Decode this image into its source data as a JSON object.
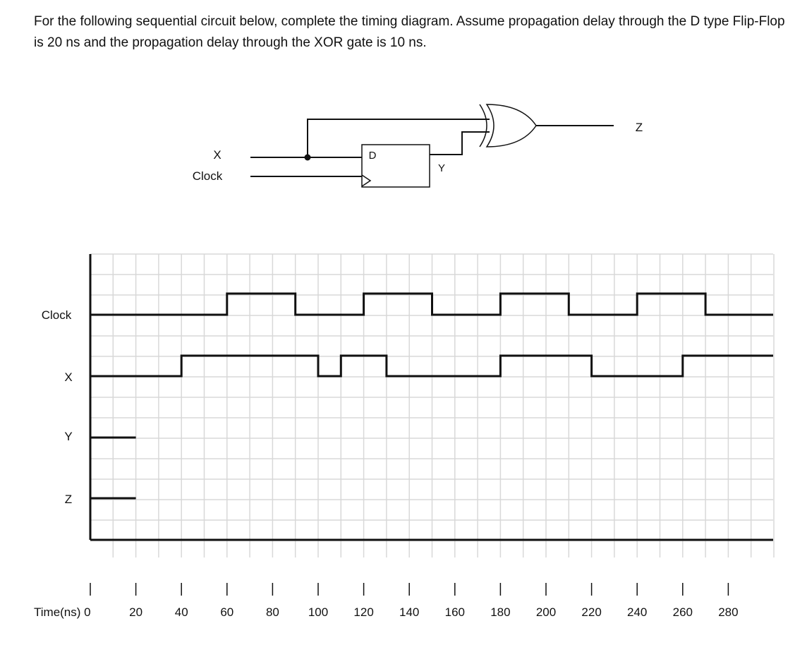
{
  "question": "For the following sequential circuit below, complete the timing diagram. Assume propagation delay through the D type Flip-Flop is 20 ns and the propagation delay through the XOR gate is 10 ns.",
  "circuit": {
    "input_x": "X",
    "input_clock": "Clock",
    "ff_d": "D",
    "ff_output": "Y",
    "output": "Z"
  },
  "timing": {
    "axis_label": "Time(ns) 0",
    "ticks": [
      20,
      40,
      60,
      80,
      100,
      120,
      140,
      160,
      180,
      200,
      220,
      240,
      260,
      280
    ],
    "signals": [
      {
        "name": "Clock",
        "transitions": [
          [
            0,
            0
          ],
          [
            60,
            1
          ],
          [
            90,
            0
          ],
          [
            120,
            1
          ],
          [
            150,
            0
          ],
          [
            180,
            1
          ],
          [
            210,
            0
          ],
          [
            240,
            1
          ],
          [
            270,
            0
          ]
        ]
      },
      {
        "name": "X",
        "transitions": [
          [
            0,
            0
          ],
          [
            40,
            1
          ],
          [
            100,
            0
          ],
          [
            110,
            1
          ],
          [
            130,
            0
          ],
          [
            180,
            1
          ],
          [
            220,
            0
          ],
          [
            260,
            1
          ]
        ]
      },
      {
        "name": "Y",
        "transitions": [
          [
            0,
            0
          ]
        ],
        "shown_until": 20
      },
      {
        "name": "Z",
        "transitions": [
          [
            0,
            0
          ]
        ],
        "shown_until": 20
      }
    ]
  }
}
